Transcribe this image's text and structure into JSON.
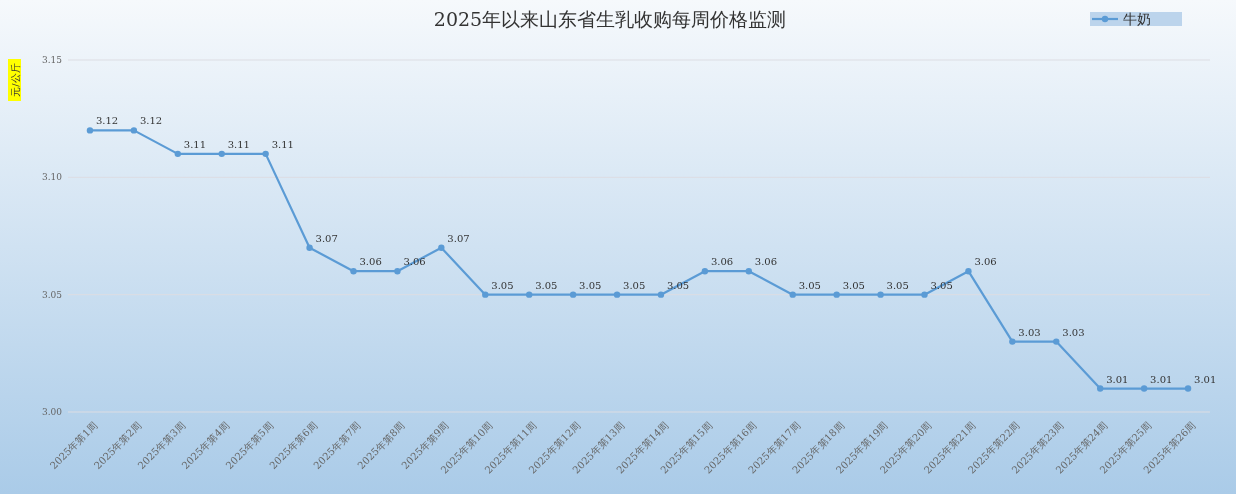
{
  "chart_data": {
    "type": "line",
    "title": "2025年以来山东省生乳收购每周价格监测",
    "ylabel": "元/公斤",
    "categories": [
      "2025年第1周",
      "2025年第2周",
      "2025年第3周",
      "2025年第4周",
      "2025年第5周",
      "2025年第6周",
      "2025年第7周",
      "2025年第8周",
      "2025年第9周",
      "2025年第10周",
      "2025年第11周",
      "2025年第12周",
      "2025年第13周",
      "2025年第14周",
      "2025年第15周",
      "2025年第16周",
      "2025年第17周",
      "2025年第18周",
      "2025年第19周",
      "2025年第20周",
      "2025年第21周",
      "2025年第22周",
      "2025年第23周",
      "2025年第24周",
      "2025年第25周",
      "2025年第26周"
    ],
    "series": [
      {
        "name": "牛奶",
        "color": "#5b9bd5",
        "values": [
          3.12,
          3.12,
          3.11,
          3.11,
          3.11,
          3.07,
          3.06,
          3.06,
          3.07,
          3.05,
          3.05,
          3.05,
          3.05,
          3.05,
          3.06,
          3.06,
          3.05,
          3.05,
          3.05,
          3.05,
          3.06,
          3.03,
          3.03,
          3.01,
          3.01,
          3.01
        ]
      }
    ],
    "ylim": [
      3.0,
      3.15
    ],
    "yticks": [
      {
        "value": 3.0,
        "label": "3.00"
      },
      {
        "value": 3.05,
        "label": "3.05"
      },
      {
        "value": 3.1,
        "label": "3.10"
      },
      {
        "value": 3.15,
        "label": "3.15"
      }
    ],
    "grid": "y",
    "legend": "top right",
    "marker": "circle",
    "line_style": "solid",
    "data_labels": true
  }
}
